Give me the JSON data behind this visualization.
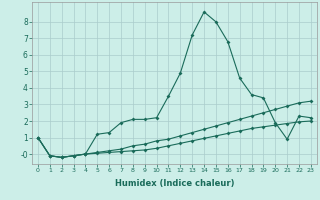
{
  "xlabel": "Humidex (Indice chaleur)",
  "x": [
    0,
    1,
    2,
    3,
    4,
    5,
    6,
    7,
    8,
    9,
    10,
    11,
    12,
    13,
    14,
    15,
    16,
    17,
    18,
    19,
    20,
    21,
    22,
    23
  ],
  "line1": [
    1.0,
    -0.1,
    -0.2,
    -0.1,
    0.0,
    1.2,
    1.3,
    1.9,
    2.1,
    2.1,
    2.2,
    3.5,
    4.9,
    7.2,
    8.6,
    8.0,
    6.8,
    4.6,
    3.6,
    3.4,
    1.9,
    0.9,
    2.3,
    2.2
  ],
  "line2": [
    1.0,
    -0.1,
    -0.2,
    -0.1,
    0.0,
    0.1,
    0.2,
    0.3,
    0.5,
    0.6,
    0.8,
    0.9,
    1.1,
    1.3,
    1.5,
    1.7,
    1.9,
    2.1,
    2.3,
    2.5,
    2.7,
    2.9,
    3.1,
    3.2
  ],
  "line3": [
    1.0,
    -0.1,
    -0.2,
    -0.1,
    0.0,
    0.05,
    0.1,
    0.15,
    0.2,
    0.25,
    0.35,
    0.5,
    0.65,
    0.8,
    0.95,
    1.1,
    1.25,
    1.4,
    1.55,
    1.65,
    1.75,
    1.85,
    1.95,
    2.0
  ],
  "line_color": "#1a6b5a",
  "bg_color": "#cceee8",
  "grid_color": "#aacccc",
  "xlim": [
    -0.5,
    23.5
  ],
  "ylim": [
    -0.6,
    9.2
  ],
  "yticks": [
    0,
    1,
    2,
    3,
    4,
    5,
    6,
    7,
    8
  ],
  "ytick_labels": [
    "-0",
    "1",
    "2",
    "3",
    "4",
    "5",
    "6",
    "7",
    "8"
  ],
  "xticks": [
    0,
    1,
    2,
    3,
    4,
    5,
    6,
    7,
    8,
    9,
    10,
    11,
    12,
    13,
    14,
    15,
    16,
    17,
    18,
    19,
    20,
    21,
    22,
    23
  ],
  "xtick_fontsize": 4.5,
  "ytick_fontsize": 5.5,
  "xlabel_fontsize": 6.0,
  "linewidth": 0.8,
  "markersize": 2.0
}
